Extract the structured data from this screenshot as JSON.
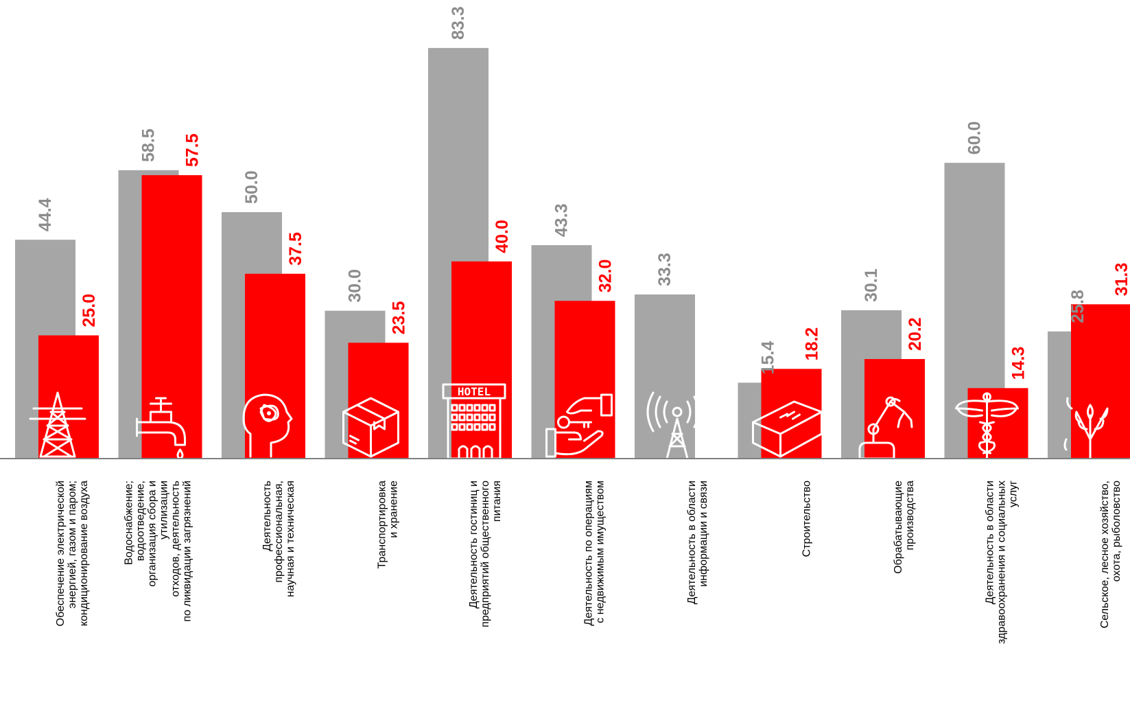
{
  "chart_data": {
    "type": "bar",
    "categories": [
      [
        "Обеспечение  электрической",
        "энергией, газом и паром;",
        "кондиционирование  воздуха"
      ],
      [
        "Водоснабжение;",
        "водоотведение,",
        "организация сбора и",
        "утилизации",
        "отходов, деятельность",
        "по ликвидации загрязнений"
      ],
      [
        "Деятельность",
        "профессиональная,",
        "научная и техническая"
      ],
      [
        "Транспортировка",
        "и хранение"
      ],
      [
        "Деятельность гостиниц и",
        "предприятий общественного",
        "питания"
      ],
      [
        "Деятельность по операциям",
        "с недвижимым имуществом"
      ],
      [
        "Деятельность в области",
        "информации и связи"
      ],
      [
        "Строительство"
      ],
      [
        "Обрабатывающие",
        "производства"
      ],
      [
        "Деятельность в области",
        "здравоохранения и социальных",
        "услуг"
      ],
      [
        "Сельское, лесное хозяйство,",
        "охота, рыболовство"
      ]
    ],
    "series": [
      {
        "color": "#a6a6a6",
        "label_color": "#8c8c8c",
        "values": [
          44.4,
          58.5,
          50.0,
          30.0,
          83.3,
          43.3,
          33.3,
          15.4,
          30.1,
          60.0,
          25.8
        ],
        "labels": [
          "44.4",
          "58.5",
          "50.0",
          "30.0",
          "83.3",
          "43.3",
          "33.3",
          "15.4",
          "30.1",
          "60.0",
          "25.8"
        ]
      },
      {
        "color": "#ff0000",
        "label_color": "#ff0000",
        "values": [
          25.0,
          57.5,
          37.5,
          23.5,
          40.0,
          32.0,
          null,
          18.2,
          20.2,
          14.3,
          31.3
        ],
        "labels": [
          "25.0",
          "57.5",
          "37.5",
          "23.5",
          "40.0",
          "32.0",
          "",
          "18.2",
          "20.2",
          "14.3",
          "31.3"
        ]
      }
    ],
    "icons": [
      "power-tower-icon",
      "water-tap-icon",
      "science-head-icon",
      "cardboard-box-icon",
      "hotel-icon",
      "house-key-hand-icon",
      "radio-tower-icon",
      "brick-icon",
      "robotic-arm-icon",
      "caduceus-icon",
      "wheat-icon"
    ],
    "hotel_sign": "HOTEL",
    "ylim": [
      0,
      90
    ],
    "grid": false,
    "legend": "none"
  }
}
